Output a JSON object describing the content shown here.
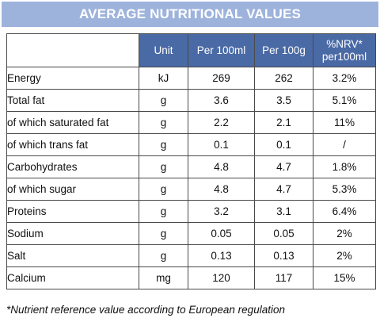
{
  "title": "AVERAGE NUTRITIONAL VALUES",
  "columns": {
    "unit": "Unit",
    "per100ml": "Per 100ml",
    "per100g": "Per 100g",
    "nrv_line1": "%NRV*",
    "nrv_line2": "per100ml"
  },
  "rows": [
    {
      "name": "Energy",
      "unit": "kJ",
      "per100ml": "269",
      "per100g": "262",
      "nrv": "3.2%"
    },
    {
      "name": "Total fat",
      "unit": "g",
      "per100ml": "3.6",
      "per100g": "3.5",
      "nrv": "5.1%"
    },
    {
      "name": "of which saturated fat",
      "unit": "g",
      "per100ml": "2.2",
      "per100g": "2.1",
      "nrv": "11%"
    },
    {
      "name": "of which trans fat",
      "unit": "g",
      "per100ml": "0.1",
      "per100g": "0.1",
      "nrv": "/"
    },
    {
      "name": "Carbohydrates",
      "unit": "g",
      "per100ml": "4.8",
      "per100g": "4.7",
      "nrv": "1.8%"
    },
    {
      "name": "of which sugar",
      "unit": "g",
      "per100ml": "4.8",
      "per100g": "4.7",
      "nrv": "5.3%"
    },
    {
      "name": "Proteins",
      "unit": "g",
      "per100ml": "3.2",
      "per100g": "3.1",
      "nrv": "6.4%"
    },
    {
      "name": "Sodium",
      "unit": "g",
      "per100ml": "0.05",
      "per100g": "0.05",
      "nrv": "2%"
    },
    {
      "name": "Salt",
      "unit": "g",
      "per100ml": "0.13",
      "per100g": "0.13",
      "nrv": "2%"
    },
    {
      "name": "Calcium",
      "unit": "mg",
      "per100ml": "120",
      "per100g": "117",
      "nrv": "15%"
    }
  ],
  "footnote": "*Nutrient reference value according to European regulation",
  "colors": {
    "banner": "#9db3dc",
    "header": "#4a6aa6"
  }
}
